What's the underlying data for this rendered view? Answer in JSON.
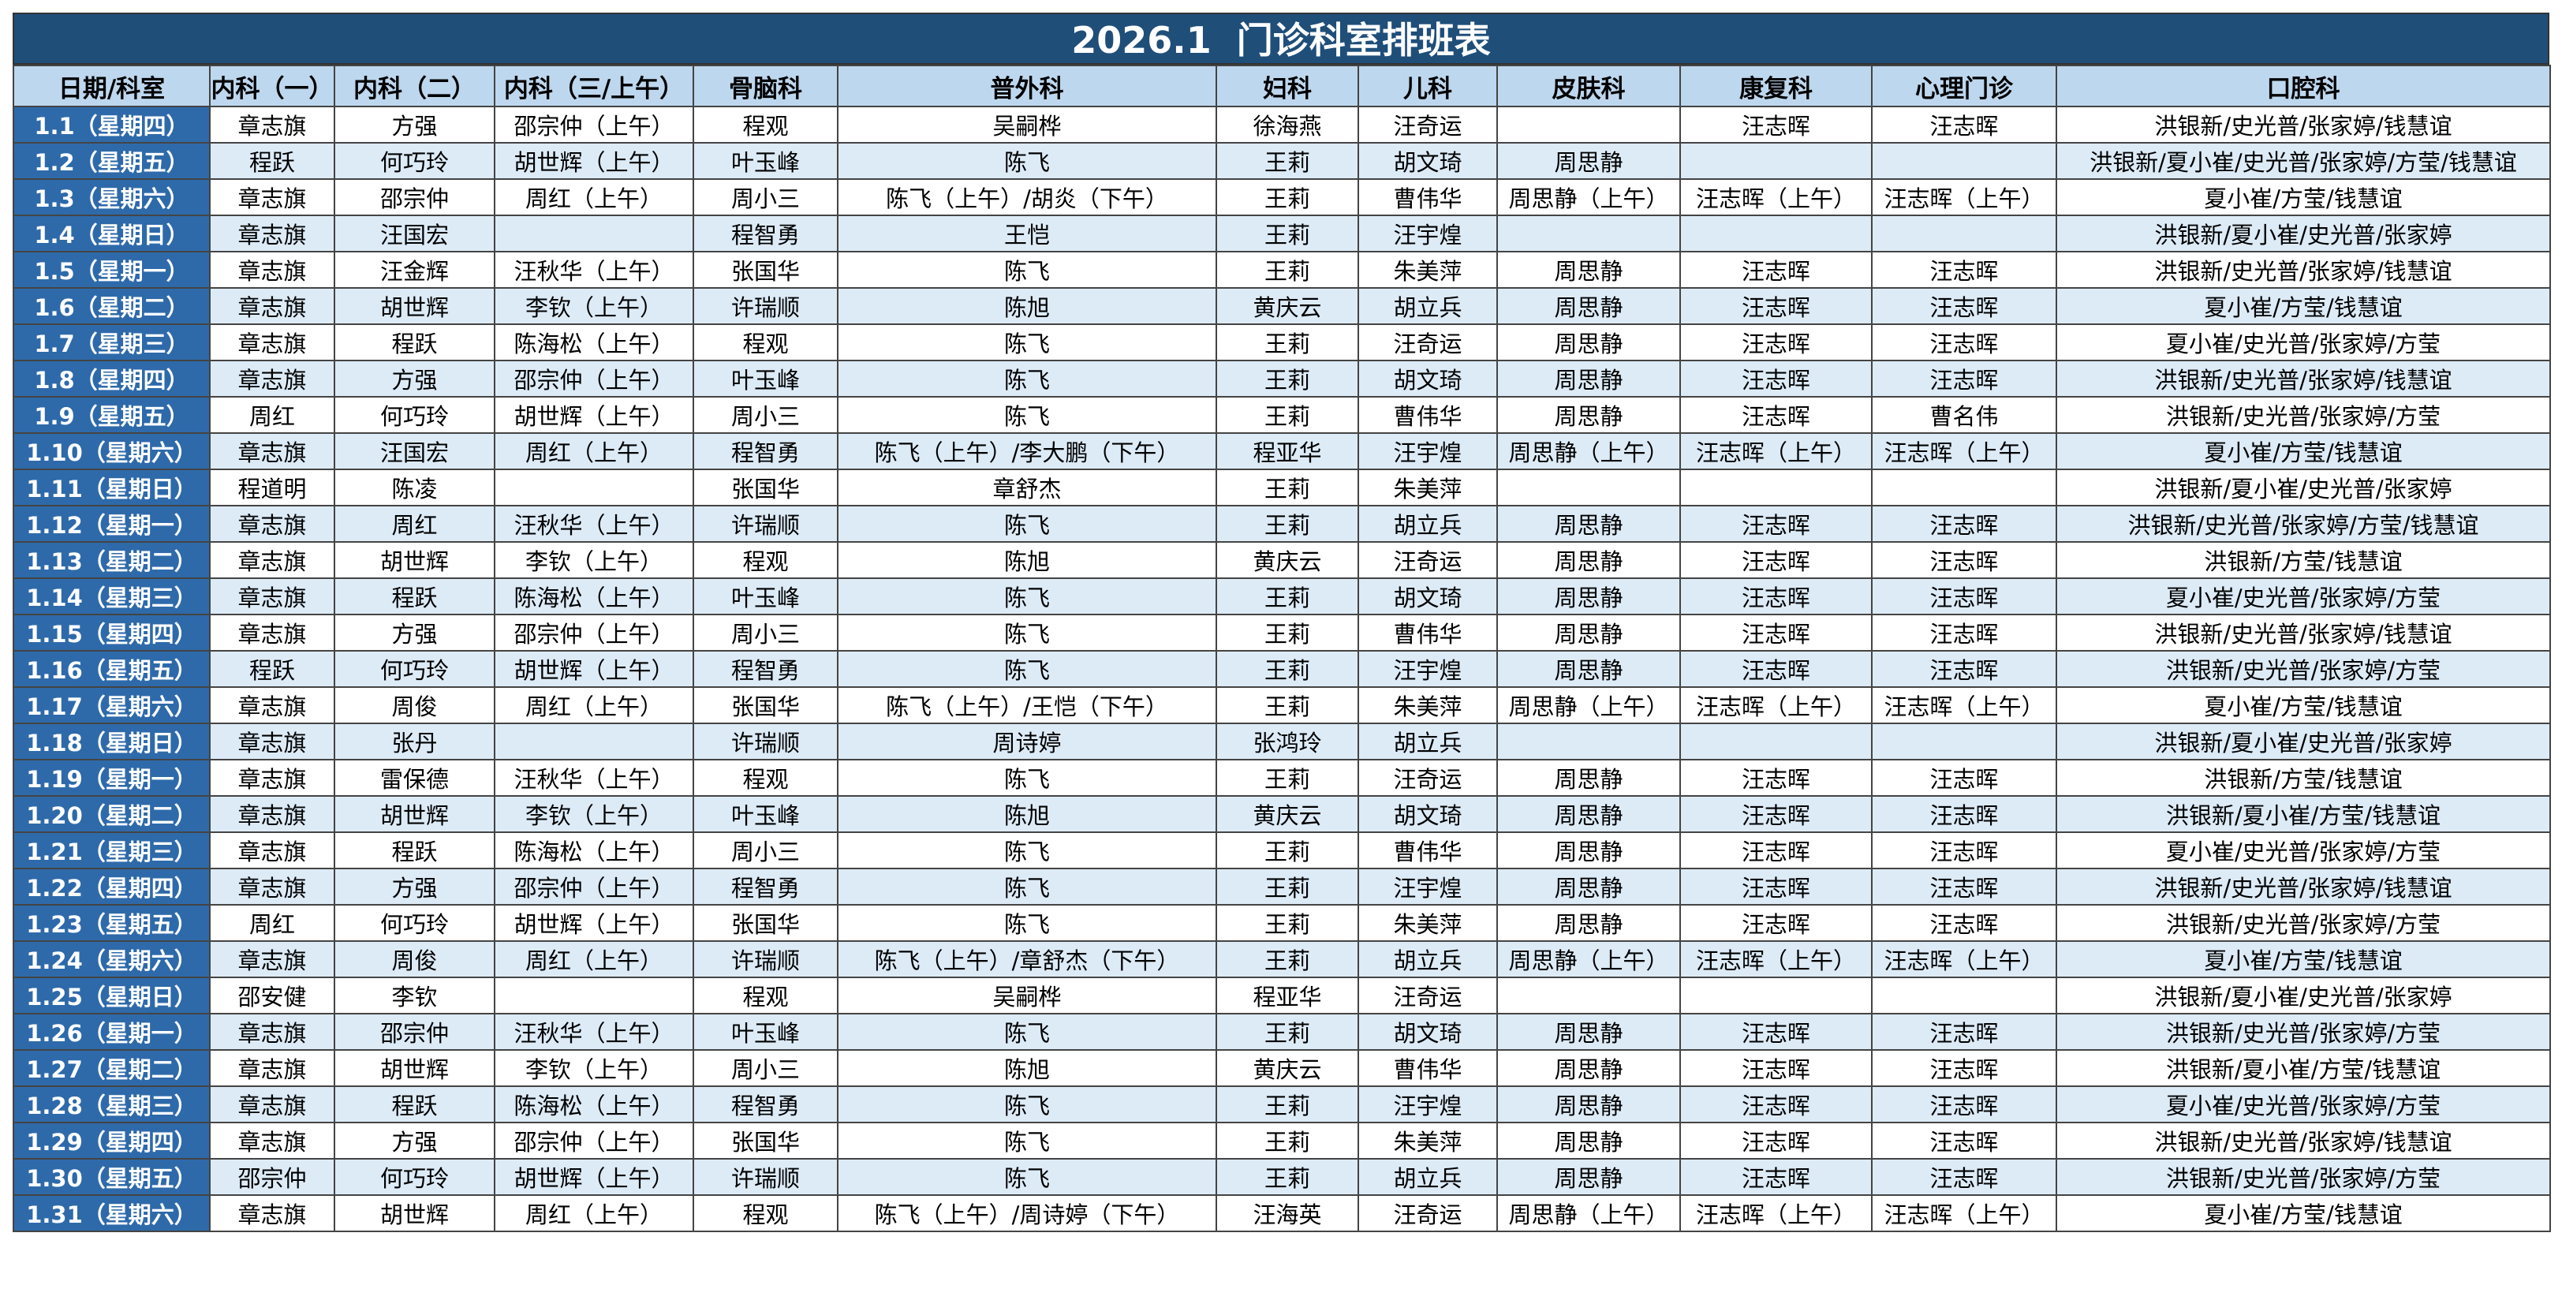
{
  "title": "2026.1  门诊科室排班表",
  "table": {
    "header": [
      "日期/科室",
      "内科（一）",
      "内科（二）",
      "内科（三/上午）",
      "骨脑科",
      "普外科",
      "妇科",
      "儿科",
      "皮肤科",
      "康复科",
      "心理门诊",
      "口腔科"
    ],
    "rows": [
      [
        "1.1（星期四）",
        "章志旗",
        "方强",
        "邵宗仲（上午）",
        "程观",
        "吴嗣桦",
        "徐海燕",
        "汪奇运",
        null,
        "汪志晖",
        "汪志晖",
        "洪银新/史光普/张家婷/钱慧谊"
      ],
      [
        "1.2（星期五）",
        "程跃",
        "何巧玲",
        "胡世辉（上午）",
        "叶玉峰",
        "陈飞",
        "王莉",
        "胡文琦",
        "周思静",
        null,
        null,
        "洪银新/夏小崔/史光普/张家婷/方莹/钱慧谊"
      ],
      [
        "1.3（星期六）",
        "章志旗",
        "邵宗仲",
        "周红（上午）",
        "周小三",
        "陈飞（上午）/胡炎（下午）",
        "王莉",
        "曹伟华",
        "周思静（上午）",
        "汪志晖（上午）",
        "汪志晖（上午）",
        "夏小崔/方莹/钱慧谊"
      ],
      [
        "1.4（星期日）",
        "章志旗",
        "汪国宏",
        null,
        "程智勇",
        "王恺",
        "王莉",
        "汪宇煌",
        null,
        null,
        null,
        "洪银新/夏小崔/史光普/张家婷"
      ],
      [
        "1.5（星期一）",
        "章志旗",
        "汪金辉",
        "汪秋华（上午）",
        "张国华",
        "陈飞",
        "王莉",
        "朱美萍",
        "周思静",
        "汪志晖",
        "汪志晖",
        "洪银新/史光普/张家婷/钱慧谊"
      ],
      [
        "1.6（星期二）",
        "章志旗",
        "胡世辉",
        "李钦（上午）",
        "许瑞顺",
        "陈旭",
        "黄庆云",
        "胡立兵",
        "周思静",
        "汪志晖",
        "汪志晖",
        "夏小崔/方莹/钱慧谊"
      ],
      [
        "1.7（星期三）",
        "章志旗",
        "程跃",
        "陈海松（上午）",
        "程观",
        "陈飞",
        "王莉",
        "汪奇运",
        "周思静",
        "汪志晖",
        "汪志晖",
        "夏小崔/史光普/张家婷/方莹"
      ],
      [
        "1.8（星期四）",
        "章志旗",
        "方强",
        "邵宗仲（上午）",
        "叶玉峰",
        "陈飞",
        "王莉",
        "胡文琦",
        "周思静",
        "汪志晖",
        "汪志晖",
        "洪银新/史光普/张家婷/钱慧谊"
      ],
      [
        "1.9（星期五）",
        "周红",
        "何巧玲",
        "胡世辉（上午）",
        "周小三",
        "陈飞",
        "王莉",
        "曹伟华",
        "周思静",
        "汪志晖",
        "曹名伟",
        "洪银新/史光普/张家婷/方莹"
      ],
      [
        "1.10（星期六）",
        "章志旗",
        "汪国宏",
        "周红（上午）",
        "程智勇",
        "陈飞（上午）/李大鹏（下午）",
        "程亚华",
        "汪宇煌",
        "周思静（上午）",
        "汪志晖（上午）",
        "汪志晖（上午）",
        "夏小崔/方莹/钱慧谊"
      ],
      [
        "1.11（星期日）",
        "程道明",
        "陈凌",
        null,
        "张国华",
        "章舒杰",
        "王莉",
        "朱美萍",
        null,
        null,
        null,
        "洪银新/夏小崔/史光普/张家婷"
      ],
      [
        "1.12（星期一）",
        "章志旗",
        "周红",
        "汪秋华（上午）",
        "许瑞顺",
        "陈飞",
        "王莉",
        "胡立兵",
        "周思静",
        "汪志晖",
        "汪志晖",
        "洪银新/史光普/张家婷/方莹/钱慧谊"
      ],
      [
        "1.13（星期二）",
        "章志旗",
        "胡世辉",
        "李钦（上午）",
        "程观",
        "陈旭",
        "黄庆云",
        "汪奇运",
        "周思静",
        "汪志晖",
        "汪志晖",
        "洪银新/方莹/钱慧谊"
      ],
      [
        "1.14（星期三）",
        "章志旗",
        "程跃",
        "陈海松（上午）",
        "叶玉峰",
        "陈飞",
        "王莉",
        "胡文琦",
        "周思静",
        "汪志晖",
        "汪志晖",
        "夏小崔/史光普/张家婷/方莹"
      ],
      [
        "1.15（星期四）",
        "章志旗",
        "方强",
        "邵宗仲（上午）",
        "周小三",
        "陈飞",
        "王莉",
        "曹伟华",
        "周思静",
        "汪志晖",
        "汪志晖",
        "洪银新/史光普/张家婷/钱慧谊"
      ],
      [
        "1.16（星期五）",
        "程跃",
        "何巧玲",
        "胡世辉（上午）",
        "程智勇",
        "陈飞",
        "王莉",
        "汪宇煌",
        "周思静",
        "汪志晖",
        "汪志晖",
        "洪银新/史光普/张家婷/方莹"
      ],
      [
        "1.17（星期六）",
        "章志旗",
        "周俊",
        "周红（上午）",
        "张国华",
        "陈飞（上午）/王恺（下午）",
        "王莉",
        "朱美萍",
        "周思静（上午）",
        "汪志晖（上午）",
        "汪志晖（上午）",
        "夏小崔/方莹/钱慧谊"
      ],
      [
        "1.18（星期日）",
        "章志旗",
        "张丹",
        null,
        "许瑞顺",
        "周诗婷",
        "张鸿玲",
        "胡立兵",
        null,
        null,
        null,
        "洪银新/夏小崔/史光普/张家婷"
      ],
      [
        "1.19（星期一）",
        "章志旗",
        "雷保德",
        "汪秋华（上午）",
        "程观",
        "陈飞",
        "王莉",
        "汪奇运",
        "周思静",
        "汪志晖",
        "汪志晖",
        "洪银新/方莹/钱慧谊"
      ],
      [
        "1.20（星期二）",
        "章志旗",
        "胡世辉",
        "李钦（上午）",
        "叶玉峰",
        "陈旭",
        "黄庆云",
        "胡文琦",
        "周思静",
        "汪志晖",
        "汪志晖",
        "洪银新/夏小崔/方莹/钱慧谊"
      ],
      [
        "1.21（星期三）",
        "章志旗",
        "程跃",
        "陈海松（上午）",
        "周小三",
        "陈飞",
        "王莉",
        "曹伟华",
        "周思静",
        "汪志晖",
        "汪志晖",
        "夏小崔/史光普/张家婷/方莹"
      ],
      [
        "1.22（星期四）",
        "章志旗",
        "方强",
        "邵宗仲（上午）",
        "程智勇",
        "陈飞",
        "王莉",
        "汪宇煌",
        "周思静",
        "汪志晖",
        "汪志晖",
        "洪银新/史光普/张家婷/钱慧谊"
      ],
      [
        "1.23（星期五）",
        "周红",
        "何巧玲",
        "胡世辉（上午）",
        "张国华",
        "陈飞",
        "王莉",
        "朱美萍",
        "周思静",
        "汪志晖",
        "汪志晖",
        "洪银新/史光普/张家婷/方莹"
      ],
      [
        "1.24（星期六）",
        "章志旗",
        "周俊",
        "周红（上午）",
        "许瑞顺",
        "陈飞（上午）/章舒杰（下午）",
        "王莉",
        "胡立兵",
        "周思静（上午）",
        "汪志晖（上午）",
        "汪志晖（上午）",
        "夏小崔/方莹/钱慧谊"
      ],
      [
        "1.25（星期日）",
        "邵安健",
        "李钦",
        null,
        "程观",
        "吴嗣桦",
        "程亚华",
        "汪奇运",
        null,
        null,
        null,
        "洪银新/夏小崔/史光普/张家婷"
      ],
      [
        "1.26（星期一）",
        "章志旗",
        "邵宗仲",
        "汪秋华（上午）",
        "叶玉峰",
        "陈飞",
        "王莉",
        "胡文琦",
        "周思静",
        "汪志晖",
        "汪志晖",
        "洪银新/史光普/张家婷/方莹"
      ],
      [
        "1.27（星期二）",
        "章志旗",
        "胡世辉",
        "李钦（上午）",
        "周小三",
        "陈旭",
        "黄庆云",
        "曹伟华",
        "周思静",
        "汪志晖",
        "汪志晖",
        "洪银新/夏小崔/方莹/钱慧谊"
      ],
      [
        "1.28（星期三）",
        "章志旗",
        "程跃",
        "陈海松（上午）",
        "程智勇",
        "陈飞",
        "王莉",
        "汪宇煌",
        "周思静",
        "汪志晖",
        "汪志晖",
        "夏小崔/史光普/张家婷/方莹"
      ],
      [
        "1.29（星期四）",
        "章志旗",
        "方强",
        "邵宗仲（上午）",
        "张国华",
        "陈飞",
        "王莉",
        "朱美萍",
        "周思静",
        "汪志晖",
        "汪志晖",
        "洪银新/史光普/张家婷/钱慧谊"
      ],
      [
        "1.30（星期五）",
        "邵宗仲",
        "何巧玲",
        "胡世辉（上午）",
        "许瑞顺",
        "陈飞",
        "王莉",
        "胡立兵",
        "周思静",
        "汪志晖",
        "汪志晖",
        "洪银新/史光普/张家婷/方莹"
      ],
      [
        "1.31（星期六）",
        "章志旗",
        "胡世辉",
        "周红（上午）",
        "程观",
        "陈飞（上午）/周诗婷（下午）",
        "汪海英",
        "汪奇运",
        "周思静（上午）",
        "汪志晖（上午）",
        "汪志晖（上午）",
        "夏小崔/方莹/钱慧谊"
      ]
    ]
  }
}
